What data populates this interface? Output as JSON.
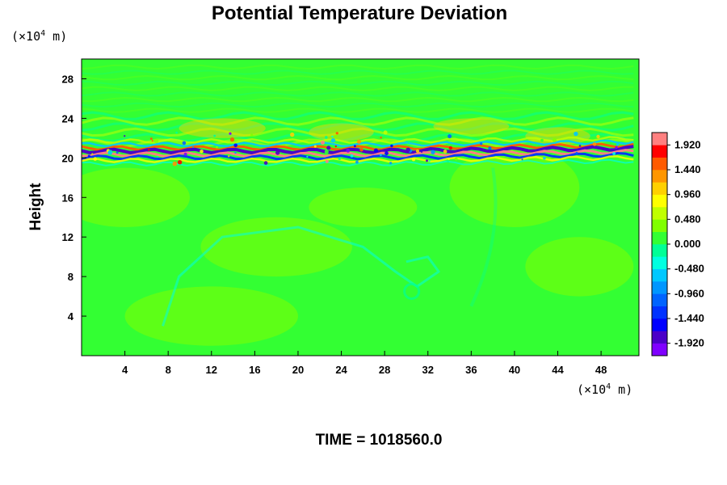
{
  "chart_data": {
    "type": "heatmap",
    "title": "Potential Temperature Deviation",
    "ylabel": "Height",
    "x_unit": {
      "prefix": "(×10",
      "exp": "4",
      "suffix": " m)"
    },
    "y_unit": {
      "prefix": "(×10",
      "exp": "4",
      "suffix": " m)"
    },
    "xlim": [
      0,
      51.5
    ],
    "ylim": [
      0,
      30
    ],
    "x_ticks": [
      4,
      8,
      12,
      16,
      20,
      24,
      28,
      32,
      36,
      40,
      44,
      48
    ],
    "y_ticks": [
      4,
      8,
      12,
      16,
      20,
      24,
      28
    ],
    "colorbar": {
      "min": -2.16,
      "max": 2.16,
      "step": 0.24,
      "tick_values": [
        1.92,
        1.44,
        0.96,
        0.48,
        0.0,
        -0.48,
        -0.96,
        -1.44,
        -1.92
      ],
      "tick_labels": [
        "1.920",
        "1.440",
        "0.960",
        "0.480",
        "0.000",
        "-0.480",
        "-0.960",
        "-1.440",
        "-1.920"
      ]
    },
    "features": [
      {
        "name": "background",
        "value": 0.0
      },
      {
        "name": "strong-layer",
        "y_center": 20.6,
        "x_range": [
          0,
          51.5
        ],
        "min_value": -1.92,
        "max_value": 1.92
      },
      {
        "name": "wave-band",
        "y_range": [
          21.5,
          24.5
        ],
        "typical_value": 0.48
      },
      {
        "name": "eddy",
        "x_center": 30.5,
        "y_center": 6.5,
        "typical_value": -0.48
      }
    ],
    "footer": "TIME = 1018560.0"
  }
}
